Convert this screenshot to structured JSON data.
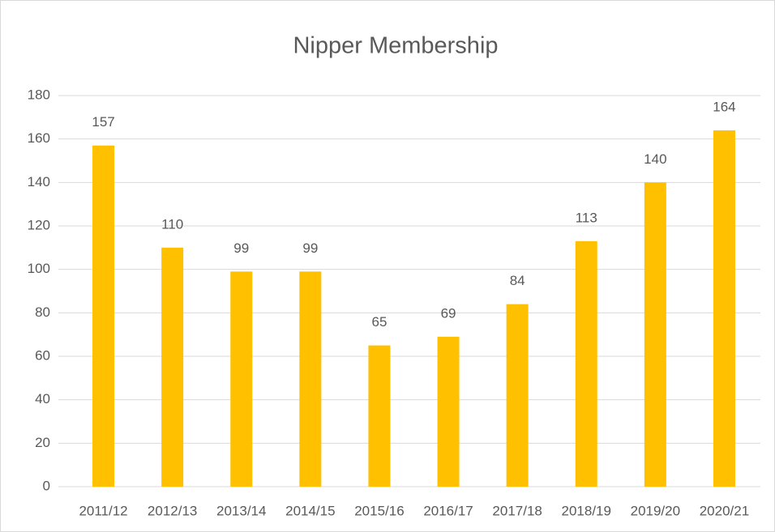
{
  "chart_data": {
    "type": "bar",
    "title": "Nipper Membership",
    "categories": [
      "2011/12",
      "2012/13",
      "2013/14",
      "2014/15",
      "2015/16",
      "2016/17",
      "2017/18",
      "2018/19",
      "2019/20",
      "2020/21"
    ],
    "values": [
      157,
      110,
      99,
      99,
      65,
      69,
      84,
      113,
      140,
      164
    ],
    "color": "#ffc000",
    "ylim": [
      0,
      180
    ],
    "yticks": [
      0,
      20,
      40,
      60,
      80,
      100,
      120,
      140,
      160,
      180
    ],
    "grid": true
  }
}
